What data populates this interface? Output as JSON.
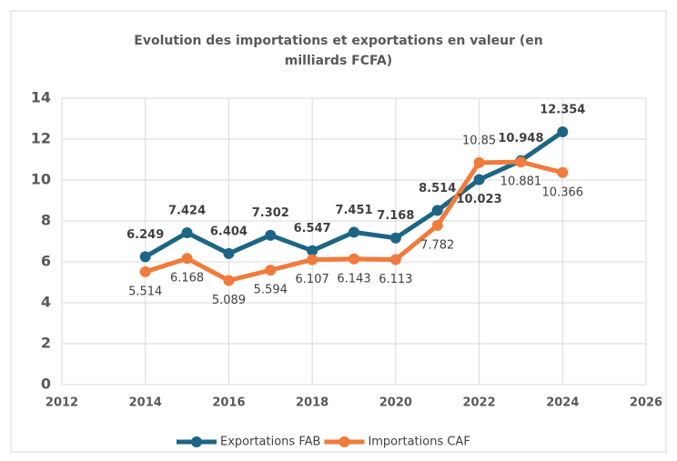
{
  "chart_data": {
    "type": "line",
    "title": "Evolution des importations et exportations en valeur (en milliards FCFA)",
    "x": [
      2014,
      2015,
      2016,
      2017,
      2018,
      2019,
      2020,
      2021,
      2022,
      2023,
      2024
    ],
    "series": [
      {
        "name": "Exportations FAB",
        "color": "#1d6585",
        "values": [
          6.249,
          7.424,
          6.404,
          7.302,
          6.547,
          7.451,
          7.168,
          8.514,
          10.023,
          10.948,
          12.354
        ]
      },
      {
        "name": "Importations CAF",
        "color": "#f07b3b",
        "values": [
          5.514,
          6.168,
          5.089,
          5.594,
          6.107,
          6.143,
          6.113,
          7.782,
          10.85,
          10.881,
          10.366
        ]
      }
    ],
    "xlim": [
      2012,
      2026
    ],
    "xticks": [
      2012,
      2014,
      2016,
      2018,
      2020,
      2022,
      2024,
      2026
    ],
    "ylim": [
      0,
      14
    ],
    "yticks": [
      0,
      2,
      4,
      6,
      8,
      10,
      12,
      14
    ],
    "grid": true,
    "legend": "bottom"
  }
}
